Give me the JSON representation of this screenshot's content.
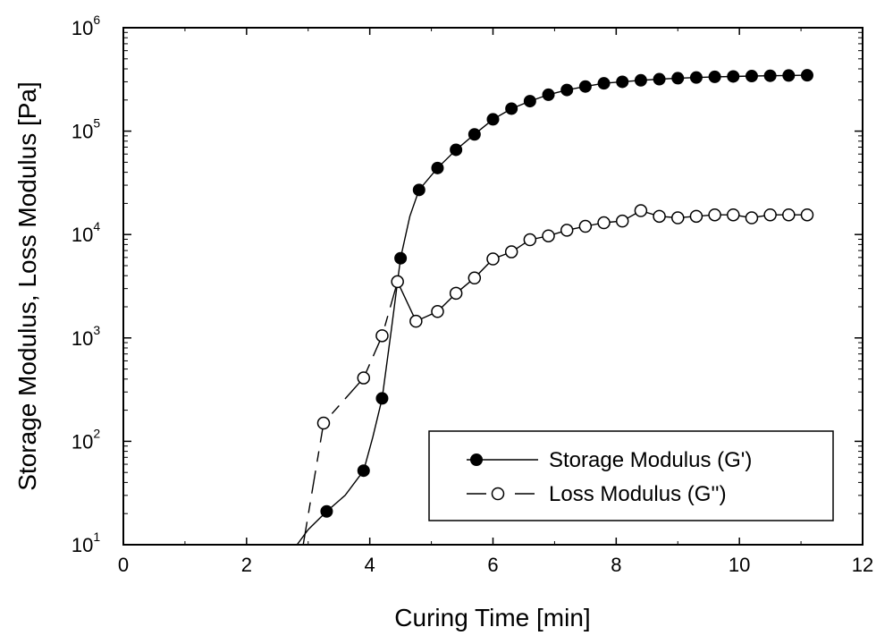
{
  "chart_data": {
    "type": "scatter",
    "xlabel": "Curing Time [min]",
    "ylabel": "Storage Modulus, Loss Modulus [Pa]",
    "xlim": [
      0,
      12
    ],
    "ylim": [
      10,
      1000000
    ],
    "y_scale": "log",
    "x_ticks": [
      0,
      2,
      4,
      6,
      8,
      10,
      12
    ],
    "y_ticks": [
      {
        "base": "10",
        "exp": "1"
      },
      {
        "base": "10",
        "exp": "2"
      },
      {
        "base": "10",
        "exp": "3"
      },
      {
        "base": "10",
        "exp": "4"
      },
      {
        "base": "10",
        "exp": "5"
      },
      {
        "base": "10",
        "exp": "6"
      }
    ],
    "grid": false,
    "legend_position": "bottom-right",
    "series": [
      {
        "name": "Storage Modulus (G')",
        "marker": "filled-circle",
        "line": "solid",
        "color": "#000000",
        "x": [
          3.3,
          3.9,
          4.2,
          4.5,
          4.8,
          5.1,
          5.4,
          5.7,
          6.0,
          6.3,
          6.6,
          6.9,
          7.2,
          7.5,
          7.8,
          8.1,
          8.4,
          8.7,
          9.0,
          9.3,
          9.6,
          9.9,
          10.2,
          10.5,
          10.8,
          11.1
        ],
        "y": [
          21,
          52,
          260,
          5900,
          27000,
          44000,
          66000,
          93000,
          130000,
          165000,
          195000,
          225000,
          250000,
          270000,
          290000,
          300000,
          310000,
          318000,
          325000,
          330000,
          335000,
          338000,
          341000,
          343000,
          345000,
          347000
        ],
        "curve_x": [
          2.82,
          3.0,
          3.3,
          3.6,
          3.9,
          4.05,
          4.2,
          4.35,
          4.5,
          4.65,
          4.8,
          5.1,
          5.4,
          5.7,
          6.0,
          6.3,
          6.6,
          6.9,
          7.2,
          7.5,
          7.8,
          8.1,
          8.4,
          8.7,
          9.0,
          9.3,
          9.6,
          9.9,
          10.2,
          10.5,
          10.8,
          11.1
        ],
        "curve_y": [
          10,
          14,
          21,
          30,
          52,
          110,
          260,
          1200,
          5900,
          15000,
          27000,
          44000,
          66000,
          93000,
          130000,
          165000,
          195000,
          225000,
          250000,
          270000,
          290000,
          300000,
          310000,
          318000,
          325000,
          330000,
          335000,
          338000,
          341000,
          343000,
          345000,
          347000
        ]
      },
      {
        "name": "Loss Modulus (G'')",
        "marker": "open-circle",
        "line": "dashed",
        "color": "#000000",
        "x": [
          3.25,
          3.9,
          4.2,
          4.45,
          4.75,
          5.1,
          5.4,
          5.7,
          6.0,
          6.3,
          6.6,
          6.9,
          7.2,
          7.5,
          7.8,
          8.1,
          8.4,
          8.7,
          9.0,
          9.3,
          9.6,
          9.9,
          10.2,
          10.5,
          10.8,
          11.1
        ],
        "y": [
          150,
          410,
          1050,
          3500,
          1450,
          1800,
          2700,
          3800,
          5800,
          6800,
          8900,
          9700,
          11000,
          12000,
          13000,
          13500,
          17000,
          15000,
          14500,
          15000,
          15500,
          15500,
          14500,
          15500,
          15500,
          15500
        ]
      }
    ]
  }
}
